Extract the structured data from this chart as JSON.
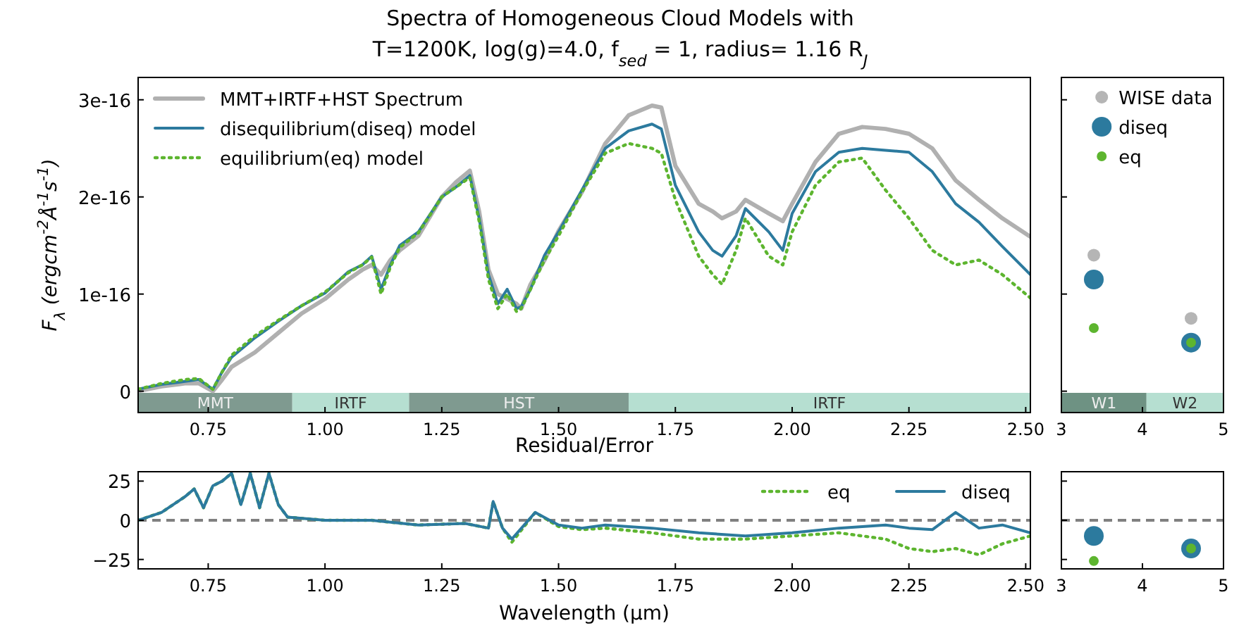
{
  "chart_data": [
    {
      "type": "line",
      "title": "Spectra of Homogeneous Cloud Models with\nT=1200K, log(g)=4.0, f$_{sed}$ = 1, radius= 1.16 R$_{J}$",
      "ylabel": "F$_{λ}$ (ergcm$^{-2}$Å$^{-1}$s$^{-1}$)",
      "x": [
        0.6,
        0.65,
        0.7,
        0.73,
        0.76,
        0.78,
        0.8,
        0.85,
        0.9,
        0.95,
        1.0,
        1.05,
        1.08,
        1.1,
        1.12,
        1.14,
        1.16,
        1.2,
        1.25,
        1.28,
        1.31,
        1.33,
        1.35,
        1.37,
        1.39,
        1.41,
        1.42,
        1.44,
        1.47,
        1.5,
        1.55,
        1.6,
        1.65,
        1.7,
        1.72,
        1.75,
        1.8,
        1.83,
        1.85,
        1.88,
        1.9,
        1.95,
        1.98,
        2.0,
        2.05,
        2.1,
        2.15,
        2.2,
        2.25,
        2.3,
        2.35,
        2.4,
        2.45,
        2.51
      ],
      "series": [
        {
          "name": "MMT+IRTF+HST Spectrum",
          "color": "#b0b0b0",
          "line_style": "solid",
          "values": [
            0.0,
            5e-18,
            8e-18,
            8e-18,
            0.0,
            1.2e-17,
            2.5e-17,
            4e-17,
            6e-17,
            8e-17,
            9.5e-17,
            1.15e-16,
            1.25e-16,
            1.3e-16,
            1.2e-16,
            1.35e-16,
            1.45e-16,
            1.6e-16,
            2e-16,
            2.15e-16,
            2.27e-16,
            1.85e-16,
            1.25e-16,
            1e-16,
            9.5e-17,
            9e-17,
            8.5e-17,
            1.1e-16,
            1.35e-16,
            1.65e-16,
            2.05e-16,
            2.55e-16,
            2.84e-16,
            2.94e-16,
            2.92e-16,
            2.32e-16,
            1.93e-16,
            1.85e-16,
            1.78e-16,
            1.85e-16,
            1.97e-16,
            1.83e-16,
            1.75e-16,
            1.93e-16,
            2.36e-16,
            2.65e-16,
            2.72e-16,
            2.7e-16,
            2.65e-16,
            2.5e-16,
            2.17e-16,
            1.97e-16,
            1.78e-16,
            1.59e-16
          ]
        },
        {
          "name": "disequilibrium(diseq) model",
          "color": "#2c7a9e",
          "line_style": "solid",
          "values": [
            2e-18,
            7e-18,
            1e-17,
            1.2e-17,
            2e-18,
            2e-17,
            3.5e-17,
            5.5e-17,
            7.2e-17,
            8.8e-17,
            1.01e-16,
            1.23e-16,
            1.3e-16,
            1.39e-16,
            1.05e-16,
            1.3e-16,
            1.5e-16,
            1.64e-16,
            2e-16,
            2.1e-16,
            2.22e-16,
            1.78e-16,
            1.2e-16,
            9e-17,
            1.05e-16,
            8.5e-17,
            8.7e-17,
            1.05e-16,
            1.4e-16,
            1.64e-16,
            2.07e-16,
            2.5e-16,
            2.68e-16,
            2.75e-16,
            2.7e-16,
            2.12e-16,
            1.64e-16,
            1.45e-16,
            1.39e-16,
            1.6e-16,
            1.88e-16,
            1.64e-16,
            1.45e-16,
            1.83e-16,
            2.26e-16,
            2.46e-16,
            2.5e-16,
            2.48e-16,
            2.46e-16,
            2.26e-16,
            1.93e-16,
            1.74e-16,
            1.49e-16,
            1.2e-16
          ]
        },
        {
          "name": "equilibrium(eq) model",
          "color": "#5db52f",
          "line_style": "dotted",
          "values": [
            2e-18,
            8e-18,
            1.2e-17,
            1.3e-17,
            2e-18,
            2e-17,
            3.7e-17,
            5.7e-17,
            7.3e-17,
            8.8e-17,
            1.02e-16,
            1.22e-16,
            1.3e-16,
            1.38e-16,
            1e-16,
            1.28e-16,
            1.48e-16,
            1.63e-16,
            2e-16,
            2.1e-16,
            2.2e-16,
            1.75e-16,
            1.15e-16,
            8.5e-17,
            1e-16,
            8.2e-17,
            8.5e-17,
            1.05e-16,
            1.35e-16,
            1.6e-16,
            2.05e-16,
            2.45e-16,
            2.55e-16,
            2.5e-16,
            2.45e-16,
            1.97e-16,
            1.39e-16,
            1.2e-16,
            1.1e-16,
            1.45e-16,
            1.78e-16,
            1.39e-16,
            1.3e-16,
            1.64e-16,
            2.12e-16,
            2.36e-16,
            2.4e-16,
            2.07e-16,
            1.78e-16,
            1.45e-16,
            1.3e-16,
            1.35e-16,
            1.2e-16,
            9.6e-17
          ]
        }
      ],
      "xlim": [
        0.6,
        2.51
      ],
      "ylim": [
        -2.2e-17,
        3.23e-16
      ],
      "xticks": [
        {
          "value": 0.75,
          "label": "0.75"
        },
        {
          "value": 1.0,
          "label": "1.00"
        },
        {
          "value": 1.25,
          "label": "1.25"
        },
        {
          "value": 1.5,
          "label": "1.50"
        },
        {
          "value": 1.75,
          "label": "1.75"
        },
        {
          "value": 2.0,
          "label": "2.00"
        },
        {
          "value": 2.25,
          "label": "2.25"
        },
        {
          "value": 2.5,
          "label": "2.50"
        }
      ],
      "yticks": [
        {
          "value": 0,
          "label": "0"
        },
        {
          "value": 1e-16,
          "label": "1e-16"
        },
        {
          "value": 2e-16,
          "label": "2e-16"
        },
        {
          "value": 3e-16,
          "label": "3e-16"
        }
      ],
      "bands": [
        {
          "axis": "x",
          "from": 0.6,
          "to": 0.93,
          "label": "MMT",
          "color": "#7f9a90"
        },
        {
          "axis": "x",
          "from": 0.93,
          "to": 1.18,
          "label": "IRTF",
          "color": "#b6dfd1"
        },
        {
          "axis": "x",
          "from": 1.18,
          "to": 1.65,
          "label": "HST",
          "color": "#7f9a90"
        },
        {
          "axis": "x",
          "from": 1.65,
          "to": 2.51,
          "label": "IRTF",
          "color": "#b6dfd1"
        }
      ],
      "legend": "top left"
    },
    {
      "type": "scatter",
      "x": [
        3.4,
        4.6
      ],
      "series": [
        {
          "name": "WISE data",
          "color": "#b5b5b5",
          "values": [
            1.4e-16,
            7.5e-17
          ]
        },
        {
          "name": "diseq",
          "color": "#2c7a9e",
          "values": [
            1.15e-16,
            5e-17
          ]
        },
        {
          "name": "eq",
          "color": "#5db52f",
          "values": [
            6.5e-17,
            5e-17
          ]
        }
      ],
      "xlim": [
        3,
        5
      ],
      "ylim": [
        -2.2e-17,
        3.23e-16
      ],
      "xticks": [
        {
          "value": 3,
          "label": "3"
        },
        {
          "value": 4,
          "label": "4"
        },
        {
          "value": 5,
          "label": "5"
        }
      ],
      "yticks": [
        {
          "value": 0,
          "label": null
        },
        {
          "value": 1e-16,
          "label": null
        },
        {
          "value": 2e-16,
          "label": null
        },
        {
          "value": 3e-16,
          "label": null
        }
      ],
      "tick_labels": "x",
      "marker": "circle",
      "bands": [
        {
          "axis": "x",
          "from": 3,
          "to": 4.05,
          "label": "W1",
          "color": "#6e9283"
        },
        {
          "axis": "x",
          "from": 4.05,
          "to": 5,
          "label": "W2",
          "color": "#b6dfd1"
        }
      ],
      "legend": "top right"
    },
    {
      "type": "line",
      "title": "Residual/Error",
      "xlabel": "Wavelength (μm)",
      "x": [
        0.6,
        0.65,
        0.7,
        0.72,
        0.74,
        0.76,
        0.78,
        0.8,
        0.82,
        0.84,
        0.86,
        0.88,
        0.9,
        0.92,
        1.0,
        1.1,
        1.2,
        1.3,
        1.35,
        1.36,
        1.38,
        1.4,
        1.45,
        1.5,
        1.55,
        1.6,
        1.7,
        1.8,
        1.9,
        2.0,
        2.1,
        2.2,
        2.25,
        2.3,
        2.35,
        2.4,
        2.45,
        2.51
      ],
      "series": [
        {
          "name": "eq",
          "color": "#5db52f",
          "line_style": "dotted",
          "values": [
            0,
            5,
            15,
            20,
            8,
            22,
            25,
            30,
            10,
            30,
            8,
            30,
            10,
            2,
            0,
            0,
            -3,
            -2,
            -5,
            12,
            -5,
            -14,
            5,
            -4,
            -6,
            -5,
            -8,
            -12,
            -12,
            -10,
            -8,
            -12,
            -18,
            -20,
            -18,
            -22,
            -15,
            -10
          ]
        },
        {
          "name": "diseq",
          "color": "#2c7a9e",
          "line_style": "solid",
          "values": [
            0,
            5,
            15,
            20,
            8,
            22,
            25,
            30,
            10,
            30,
            8,
            30,
            10,
            2,
            0,
            0,
            -3,
            -2,
            -5,
            12,
            -5,
            -12,
            5,
            -3,
            -5,
            -3,
            -5,
            -8,
            -10,
            -8,
            -5,
            -3,
            -5,
            -6,
            5,
            -5,
            -3,
            -8
          ]
        }
      ],
      "xlim": [
        0.6,
        2.51
      ],
      "ylim": [
        -31,
        31
      ],
      "xticks": [
        {
          "value": 0.75,
          "label": "0.75"
        },
        {
          "value": 1.0,
          "label": "1.00"
        },
        {
          "value": 1.25,
          "label": "1.25"
        },
        {
          "value": 1.5,
          "label": "1.50"
        },
        {
          "value": 1.75,
          "label": "1.75"
        },
        {
          "value": 2.0,
          "label": "2.00"
        },
        {
          "value": 2.25,
          "label": "2.25"
        },
        {
          "value": 2.5,
          "label": "2.50"
        }
      ],
      "yticks": [
        {
          "value": -25,
          "label": "−25"
        },
        {
          "value": 0,
          "label": "0"
        },
        {
          "value": 25,
          "label": "25"
        }
      ],
      "ref_lines": [
        {
          "axis": "y",
          "value": 0,
          "color": "#808080",
          "line_style": "dashed"
        }
      ],
      "legend": "top right"
    },
    {
      "type": "scatter",
      "x": [
        3.4,
        4.6
      ],
      "series": [
        {
          "color": "#2c7a9e",
          "values": [
            -10,
            -18
          ]
        },
        {
          "color": "#5db52f",
          "values": [
            -26,
            -18
          ]
        }
      ],
      "xlim": [
        3,
        5
      ],
      "ylim": [
        -31,
        31
      ],
      "xticks": [
        {
          "value": 3,
          "label": "3"
        },
        {
          "value": 4,
          "label": "4"
        },
        {
          "value": 5,
          "label": "5"
        }
      ],
      "yticks": [
        {
          "value": -25,
          "label": null
        },
        {
          "value": 0,
          "label": null
        },
        {
          "value": 25,
          "label": null
        }
      ],
      "tick_labels": "x",
      "marker": "circle",
      "ref_lines": [
        {
          "axis": "y",
          "value": 0,
          "color": "#808080",
          "line_style": "dashed"
        }
      ]
    }
  ]
}
